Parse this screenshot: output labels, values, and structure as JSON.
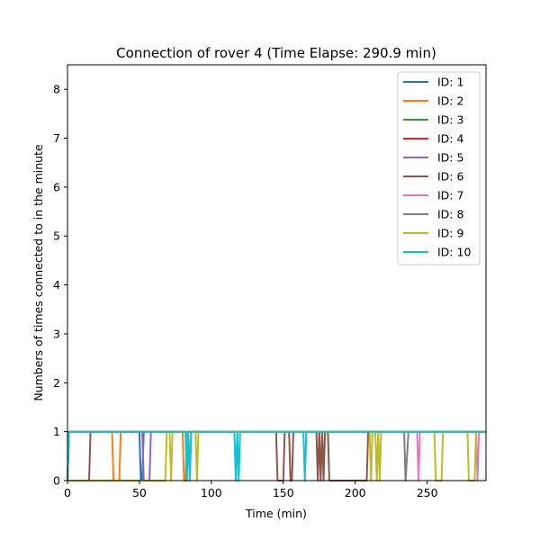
{
  "chart_data": {
    "type": "line",
    "title": "Connection of rover 4 (Time Elapse: 290.9 min)",
    "xlabel": "Time (min)",
    "ylabel": "Numbers of times connected to in the minute",
    "xlim": [
      0,
      290.9
    ],
    "ylim": [
      0,
      8.5
    ],
    "x_ticks": [
      0,
      50,
      100,
      150,
      200,
      250
    ],
    "y_ticks": [
      0,
      1,
      2,
      3,
      4,
      5,
      6,
      7,
      8
    ],
    "grid": false,
    "legend_position": "top-right",
    "series": [
      {
        "name": "ID: 1",
        "color": "#1f77b4",
        "points": [
          [
            0,
            0
          ],
          [
            1,
            1
          ],
          [
            50,
            1
          ],
          [
            51,
            0
          ],
          [
            52,
            0
          ],
          [
            53,
            1
          ],
          [
            290.9,
            1
          ]
        ]
      },
      {
        "name": "ID: 2",
        "color": "#ff7f0e",
        "points": [
          [
            0,
            0
          ],
          [
            1,
            1
          ],
          [
            31,
            1
          ],
          [
            32,
            0
          ],
          [
            36,
            0
          ],
          [
            37,
            1
          ],
          [
            80,
            1
          ],
          [
            81,
            0
          ],
          [
            82,
            0
          ],
          [
            83,
            1
          ],
          [
            290.9,
            1
          ]
        ]
      },
      {
        "name": "ID: 3",
        "color": "#2ca02c",
        "points": [
          [
            0,
            0
          ],
          [
            1,
            1
          ],
          [
            290.9,
            1
          ]
        ]
      },
      {
        "name": "ID: 4",
        "color": "#d62728",
        "points": [
          [
            0,
            0
          ],
          [
            1,
            1
          ],
          [
            290.9,
            1
          ]
        ]
      },
      {
        "name": "ID: 5",
        "color": "#9467bd",
        "points": [
          [
            0,
            0
          ],
          [
            1,
            1
          ],
          [
            52,
            1
          ],
          [
            53,
            0
          ],
          [
            57,
            0
          ],
          [
            58,
            1
          ],
          [
            290.9,
            1
          ]
        ]
      },
      {
        "name": "ID: 6",
        "color": "#8c564b",
        "points": [
          [
            0,
            0
          ],
          [
            15,
            0
          ],
          [
            16,
            1
          ],
          [
            145,
            1
          ],
          [
            146,
            0
          ],
          [
            150,
            0
          ],
          [
            151,
            1
          ],
          [
            154,
            1
          ],
          [
            155,
            0
          ],
          [
            156,
            0
          ],
          [
            157,
            1
          ],
          [
            173,
            1
          ],
          [
            174,
            0
          ],
          [
            175,
            1
          ],
          [
            176,
            0
          ],
          [
            177,
            1
          ],
          [
            178,
            0
          ],
          [
            179,
            1
          ],
          [
            181,
            1
          ],
          [
            182,
            0
          ],
          [
            208,
            0
          ],
          [
            209,
            1
          ],
          [
            290.9,
            1
          ]
        ]
      },
      {
        "name": "ID: 7",
        "color": "#e377c2",
        "points": [
          [
            0,
            0
          ],
          [
            1,
            1
          ],
          [
            243,
            1
          ],
          [
            244,
            0
          ],
          [
            245,
            1
          ],
          [
            284,
            1
          ],
          [
            285,
            0
          ],
          [
            286,
            1
          ],
          [
            290.9,
            1
          ]
        ]
      },
      {
        "name": "ID: 8",
        "color": "#7f7f7f",
        "points": [
          [
            0,
            0
          ],
          [
            1,
            1
          ],
          [
            234,
            1
          ],
          [
            235,
            0
          ],
          [
            237,
            1
          ],
          [
            290.9,
            1
          ]
        ]
      },
      {
        "name": "ID: 9",
        "color": "#bcbd22",
        "points": [
          [
            0,
            0
          ],
          [
            68,
            0
          ],
          [
            69,
            1
          ],
          [
            71,
            1
          ],
          [
            72,
            0
          ],
          [
            73,
            1
          ],
          [
            84,
            1
          ],
          [
            85,
            0
          ],
          [
            86,
            1
          ],
          [
            89,
            1
          ],
          [
            90,
            0
          ],
          [
            91,
            1
          ],
          [
            210,
            1
          ],
          [
            211,
            0
          ],
          [
            212,
            1
          ],
          [
            214,
            1
          ],
          [
            215,
            0
          ],
          [
            216,
            1
          ],
          [
            217,
            0
          ],
          [
            218,
            1
          ],
          [
            255,
            1
          ],
          [
            256,
            0
          ],
          [
            260,
            0
          ],
          [
            261,
            1
          ],
          [
            278,
            1
          ],
          [
            279,
            0
          ],
          [
            283,
            0
          ],
          [
            284,
            1
          ],
          [
            290.9,
            1
          ]
        ]
      },
      {
        "name": "ID: 10",
        "color": "#17becf",
        "points": [
          [
            0,
            0
          ],
          [
            1,
            1
          ],
          [
            82,
            1
          ],
          [
            83,
            0
          ],
          [
            84,
            1
          ],
          [
            85,
            0
          ],
          [
            86,
            1
          ],
          [
            116,
            1
          ],
          [
            117,
            0
          ],
          [
            118,
            1
          ],
          [
            119,
            0
          ],
          [
            120,
            1
          ],
          [
            164,
            1
          ],
          [
            165,
            0
          ],
          [
            166,
            1
          ],
          [
            290.9,
            1
          ]
        ]
      }
    ]
  }
}
